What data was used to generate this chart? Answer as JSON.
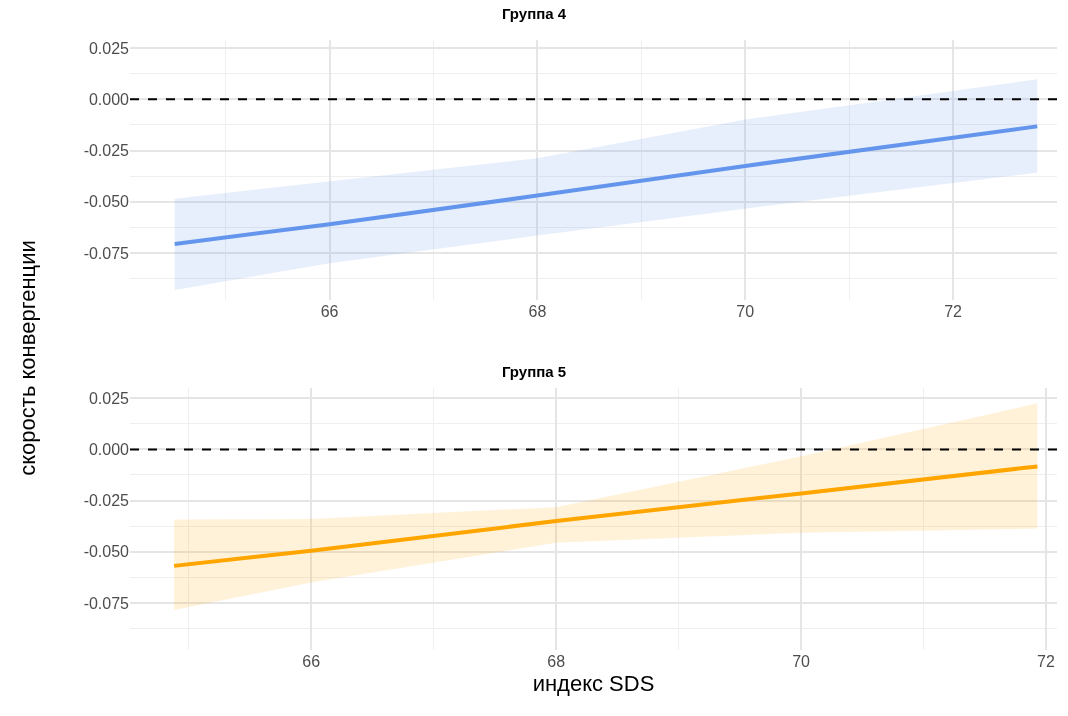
{
  "chart_data": [
    {
      "type": "line",
      "title": "Группа 4",
      "ylabel": "скорость конвергенции",
      "xlim": [
        64.08,
        73.0
      ],
      "ylim": [
        -0.098,
        0.029
      ],
      "xticks": [
        66,
        68,
        70,
        72
      ],
      "yticks": [
        {
          "value": 0.025,
          "label": "0.025"
        },
        {
          "value": 0,
          "label": "0.000"
        },
        {
          "value": -0.025,
          "label": "-0.025"
        },
        {
          "value": -0.05,
          "label": "-0.050"
        },
        {
          "value": -0.075,
          "label": "-0.075"
        }
      ],
      "grid": true,
      "marker": "none",
      "line_style": "solid",
      "ref_lines": [
        {
          "axis": "y",
          "value": 0,
          "color": "#000000",
          "line_style": "dashed"
        }
      ],
      "series": [
        {
          "color": "#6495ed",
          "x": [
            64.51,
            66,
            68,
            70,
            72.81
          ],
          "values": [
            -0.0706,
            -0.061,
            -0.047,
            -0.0325,
            -0.0132
          ],
          "lower": [
            -0.0931,
            -0.08,
            -0.0665,
            -0.0534,
            -0.0358
          ],
          "upper": [
            -0.0485,
            -0.04,
            -0.0287,
            -0.0098,
            0.0098
          ]
        }
      ]
    },
    {
      "type": "line",
      "title": "Группа 5",
      "xlabel": "индекс SDS",
      "xlim": [
        64.52,
        72.09
      ],
      "ylim": [
        -0.098,
        0.03
      ],
      "xticks": [
        66,
        68,
        70,
        72
      ],
      "yticks": [
        {
          "value": 0.025,
          "label": "0.025"
        },
        {
          "value": 0,
          "label": "0.000"
        },
        {
          "value": -0.025,
          "label": "-0.025"
        },
        {
          "value": -0.05,
          "label": "-0.050"
        },
        {
          "value": -0.075,
          "label": "-0.075"
        }
      ],
      "grid": true,
      "marker": "none",
      "line_style": "solid",
      "ref_lines": [
        {
          "axis": "y",
          "value": 0,
          "color": "#000000",
          "line_style": "dashed"
        }
      ],
      "series": [
        {
          "color": "#ffa500",
          "x": [
            64.88,
            66,
            68,
            70,
            71.93
          ],
          "values": [
            -0.0569,
            -0.0495,
            -0.035,
            -0.0215,
            -0.0083
          ],
          "lower": [
            -0.0784,
            -0.065,
            -0.0456,
            -0.0407,
            -0.0387
          ],
          "upper": [
            -0.0343,
            -0.034,
            -0.0282,
            -0.0034,
            0.0225
          ]
        }
      ]
    }
  ]
}
